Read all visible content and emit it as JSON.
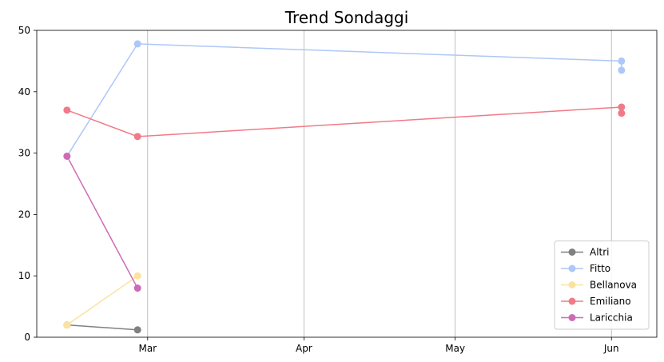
{
  "chart_data": {
    "type": "line",
    "title": "Trend Sondaggi",
    "xlabel": "",
    "ylabel": "",
    "x_ticks": [
      "Mar",
      "Apr",
      "May",
      "Jun"
    ],
    "x_tick_dates": [
      "2017-03-01",
      "2017-04-01",
      "2017-05-01",
      "2017-06-01"
    ],
    "xlim": [
      "2017-02-07",
      "2017-06-10"
    ],
    "ylim": [
      0,
      50
    ],
    "y_ticks": [
      0,
      10,
      20,
      30,
      40,
      50
    ],
    "grid": "x-major",
    "legend_position": "lower-right",
    "series": [
      {
        "name": "Altri",
        "color": "#808080",
        "points": [
          {
            "x": "2017-02-13",
            "y": 2.0
          },
          {
            "x": "2017-02-27",
            "y": 1.2
          }
        ]
      },
      {
        "name": "Fitto",
        "color": "#aec7f8",
        "points": [
          {
            "x": "2017-02-13",
            "y": 29.5
          },
          {
            "x": "2017-02-27",
            "y": 47.8
          },
          {
            "x": "2017-06-03",
            "y": 45.0
          },
          {
            "x": "2017-06-03",
            "y": 43.5
          }
        ]
      },
      {
        "name": "Bellanova",
        "color": "#fbe29f",
        "points": [
          {
            "x": "2017-02-13",
            "y": 2.0
          },
          {
            "x": "2017-02-27",
            "y": 10.0
          }
        ]
      },
      {
        "name": "Emiliano",
        "color": "#f07a88",
        "points": [
          {
            "x": "2017-02-13",
            "y": 37.0
          },
          {
            "x": "2017-02-27",
            "y": 32.7
          },
          {
            "x": "2017-06-03",
            "y": 37.5
          },
          {
            "x": "2017-06-03",
            "y": 36.5
          }
        ]
      },
      {
        "name": "Laricchia",
        "color": "#cc6bb6",
        "points": [
          {
            "x": "2017-02-13",
            "y": 29.5
          },
          {
            "x": "2017-02-27",
            "y": 8.0
          }
        ]
      }
    ]
  }
}
